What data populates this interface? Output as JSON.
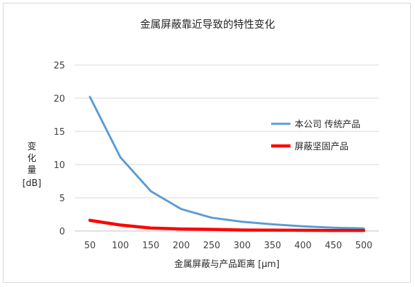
{
  "chart_data": {
    "type": "line",
    "title": "金属屏蔽靠近导致的特性变化",
    "xlabel": "金属屏蔽与产品距离 [μm]",
    "ylabel_lines": [
      "变",
      "化",
      "量",
      "[dB]"
    ],
    "x": [
      50,
      100,
      150,
      200,
      250,
      300,
      350,
      400,
      450,
      500
    ],
    "x_tick_labels": [
      "50",
      "100",
      "150",
      "200",
      "250",
      "300",
      "350",
      "400",
      "450",
      "500"
    ],
    "ylim": [
      0,
      25
    ],
    "y_ticks": [
      0,
      5,
      10,
      15,
      20,
      25
    ],
    "y_tick_labels": [
      "0",
      "5",
      "10",
      "15",
      "20",
      "25"
    ],
    "grid": true,
    "legend_position": "right",
    "series": [
      {
        "name": "本公司 传统产品",
        "color": "#5b9bd5",
        "values": [
          20.2,
          11.1,
          6.0,
          3.3,
          2.0,
          1.4,
          1.0,
          0.7,
          0.5,
          0.4
        ]
      },
      {
        "name": "屏蔽坚固产品",
        "color": "#ff0000",
        "values": [
          1.6,
          0.9,
          0.45,
          0.3,
          0.25,
          0.15,
          0.12,
          0.1,
          0.08,
          0.08
        ]
      }
    ]
  }
}
